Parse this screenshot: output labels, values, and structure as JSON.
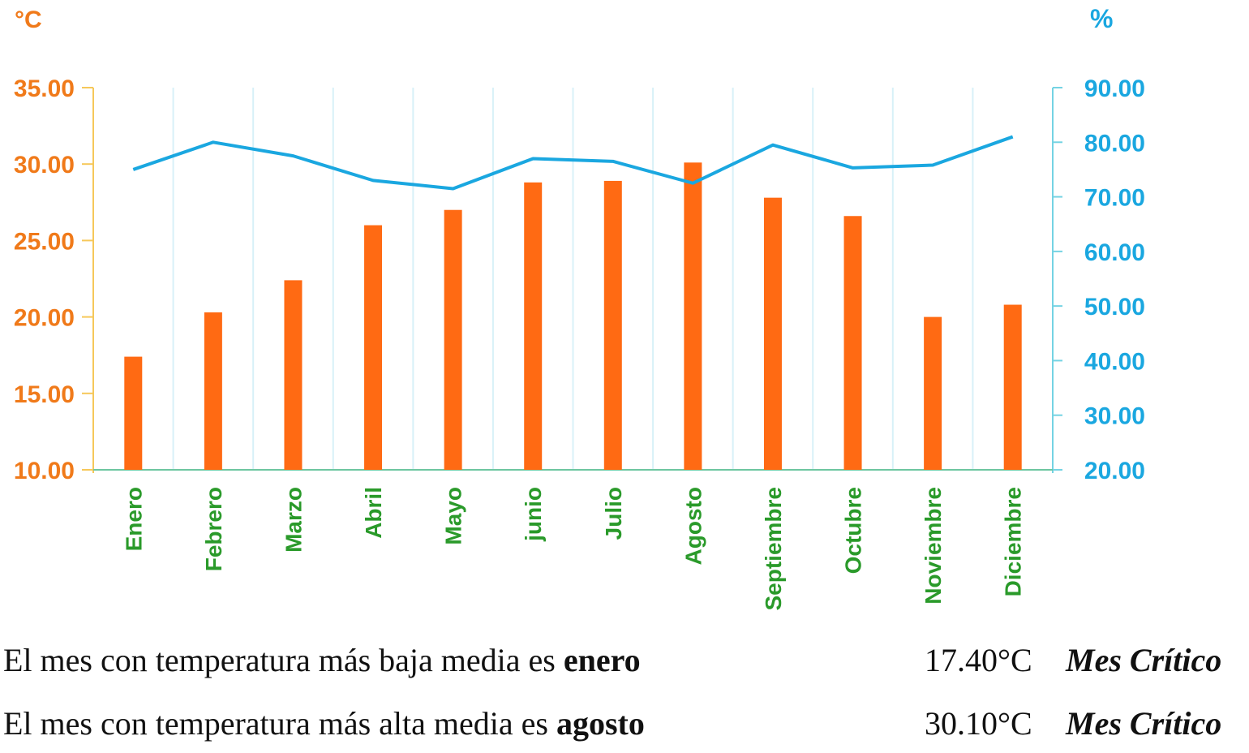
{
  "chart_data": {
    "type": "bar+line",
    "categories": [
      "Enero",
      "Febrero",
      "Marzo",
      "Abril",
      "Mayo",
      "junio",
      "Julio",
      "Agosto",
      "Septiembre",
      "Octubre",
      "Noviembre",
      "Diciembre"
    ],
    "series": [
      {
        "type": "bar",
        "axis": "left",
        "color": "#ff6a13",
        "values": [
          17.4,
          20.3,
          22.4,
          26.0,
          27.0,
          28.8,
          28.9,
          30.1,
          27.8,
          26.6,
          20.0,
          20.8
        ]
      },
      {
        "type": "line",
        "axis": "right",
        "color": "#1aa7e0",
        "values": [
          75.0,
          80.0,
          77.5,
          73.0,
          71.5,
          77.0,
          76.5,
          72.5,
          79.5,
          75.3,
          75.8,
          81.0
        ]
      }
    ],
    "left_axis": {
      "unit": "°C",
      "range": [
        10,
        35
      ],
      "ticks": [
        "10.00",
        "15.00",
        "20.00",
        "25.00",
        "30.00",
        "35.00"
      ],
      "color": "#f07a1a"
    },
    "right_axis": {
      "unit": "%",
      "range": [
        20,
        90
      ],
      "ticks": [
        "20.00",
        "30.00",
        "40.00",
        "50.00",
        "60.00",
        "70.00",
        "80.00",
        "90.00"
      ],
      "color": "#1aa7e0"
    },
    "grid": "vertical",
    "legend": "none"
  },
  "captions": [
    {
      "text_before": "El mes con temperatura más baja media es ",
      "month": "enero",
      "value": "17.40°C",
      "tag": "Mes Crítico"
    },
    {
      "text_before": "El mes con temperatura más alta media es ",
      "month": "agosto",
      "value": "30.10°C",
      "tag": "Mes Crítico"
    }
  ]
}
